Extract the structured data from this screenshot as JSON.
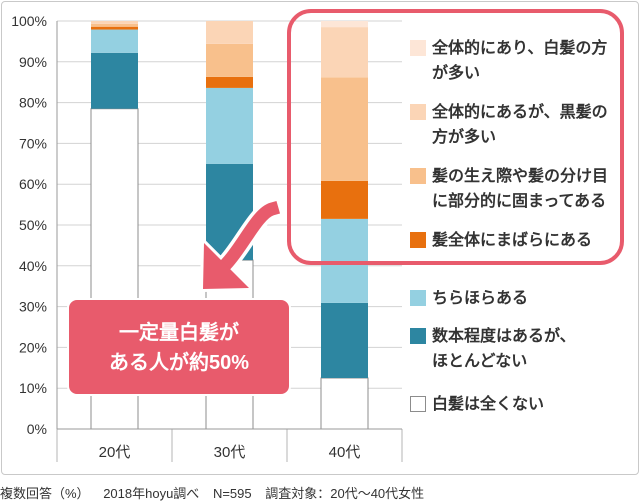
{
  "chart_data": {
    "type": "bar",
    "stacked": true,
    "categories": [
      "20代",
      "30代",
      "40代"
    ],
    "series": [
      {
        "name": "白髪は全くない",
        "color": "#ffffff",
        "values": [
          78.5,
          41.4,
          12.5
        ]
      },
      {
        "name": "数本程度はあるが、\nほとんどない",
        "color": "#2d86a1",
        "values": [
          13.7,
          23.6,
          18.4
        ]
      },
      {
        "name": "ちらほらある",
        "color": "#94d0e1",
        "values": [
          5.7,
          18.6,
          20.6
        ]
      },
      {
        "name": "髪全体にまばらにある",
        "color": "#e8700e",
        "values": [
          0.7,
          2.7,
          9.3
        ]
      },
      {
        "name": "髪の生え際や髪の分け目\nに部分的に固まってある",
        "color": "#f8c08c",
        "values": [
          0.7,
          8.1,
          25.4
        ]
      },
      {
        "name": "全体的にあるが、黒髪の\n方が多い",
        "color": "#fbd5b6",
        "values": [
          0.7,
          5.6,
          12.3
        ]
      },
      {
        "name": "全体的にあり、白髪の方\nが多い",
        "color": "#fde6d7",
        "values": [
          0.0,
          0.0,
          1.5
        ]
      }
    ],
    "ylim": [
      0,
      100
    ],
    "ytick_values": [
      0,
      10,
      20,
      30,
      40,
      50,
      60,
      70,
      80,
      90,
      100
    ],
    "ytick_labels": [
      "0%",
      "10%",
      "20%",
      "30%",
      "40%",
      "50%",
      "60%",
      "70%",
      "80%",
      "90%",
      "100%"
    ],
    "grid": true,
    "legend_position": "right",
    "highlight_color": "#e85b6c",
    "annotation": {
      "lines": [
        "一定量白髪が",
        "ある人が約50%"
      ],
      "color": "#e85b6c"
    },
    "notes": [
      "複数回答（%）",
      "2018年hoyu調べ",
      "N=595",
      "調査対象：20代～40代女性"
    ]
  }
}
